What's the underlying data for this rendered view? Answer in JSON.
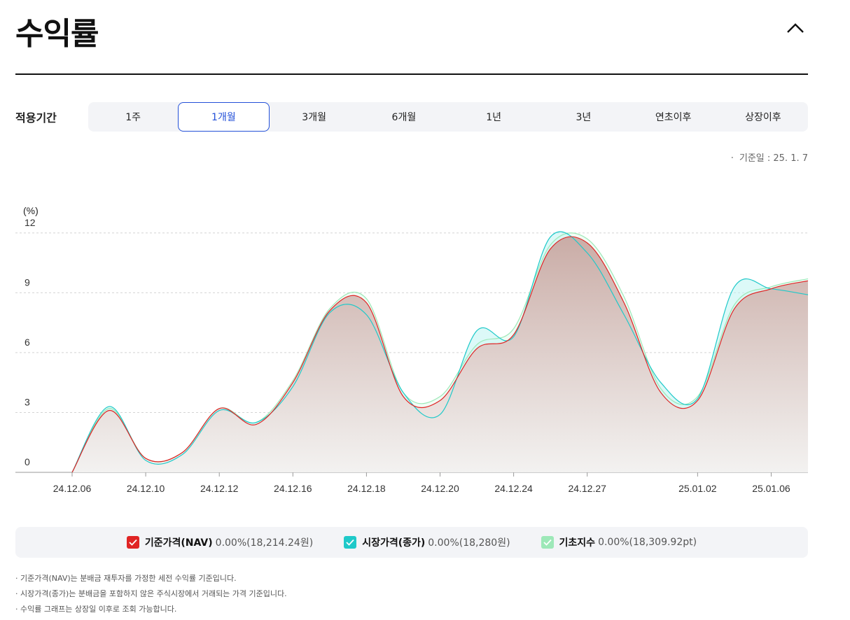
{
  "header": {
    "title": "수익률"
  },
  "period": {
    "label": "적용기간",
    "tabs": [
      "1주",
      "1개월",
      "3개월",
      "6개월",
      "1년",
      "3년",
      "연초이후",
      "상장이후"
    ],
    "active_index": 1
  },
  "base_date": {
    "text": "기준일 : 25. 1. 7"
  },
  "colors": {
    "nav": "#e02424",
    "market": "#1fc9c9",
    "index": "#9de8b8",
    "active_tab": "#2350d8"
  },
  "chart_data": {
    "type": "area",
    "y_unit_label": "(%)",
    "ylim": [
      0,
      12
    ],
    "y_ticks": [
      "0",
      "3",
      "6",
      "9",
      "12"
    ],
    "x_ticks": [
      "24.12.06",
      "24.12.10",
      "24.12.12",
      "24.12.16",
      "24.12.18",
      "24.12.20",
      "24.12.24",
      "24.12.27",
      "25.01.02",
      "25.01.06"
    ],
    "x": [
      "24.12.06",
      "24.12.09",
      "24.12.10",
      "24.12.11",
      "24.12.12",
      "24.12.13",
      "24.12.16",
      "24.12.17",
      "24.12.18",
      "24.12.19",
      "24.12.20",
      "24.12.23",
      "24.12.24",
      "24.12.26",
      "24.12.27",
      "24.12.30",
      "24.12.31",
      "25.01.02",
      "25.01.03",
      "25.01.06",
      "25.01.07"
    ],
    "series": [
      {
        "name": "기준가격(NAV)",
        "values": [
          0.0,
          3.1,
          0.7,
          1.0,
          3.2,
          2.4,
          4.5,
          8.1,
          8.5,
          3.8,
          3.6,
          6.2,
          6.9,
          11.2,
          11.5,
          8.5,
          4.0,
          3.6,
          8.2,
          9.2,
          9.6
        ]
      },
      {
        "name": "시장가격(종가)",
        "values": [
          0.0,
          3.3,
          0.6,
          0.9,
          3.1,
          2.5,
          4.3,
          8.0,
          7.9,
          4.0,
          2.9,
          7.1,
          6.8,
          11.8,
          11.0,
          7.9,
          4.5,
          3.7,
          9.3,
          9.2,
          8.9
        ]
      },
      {
        "name": "기초지수",
        "values": [
          0.0,
          3.2,
          0.7,
          1.0,
          3.2,
          2.5,
          4.6,
          8.2,
          8.7,
          4.0,
          3.8,
          6.4,
          7.2,
          11.4,
          11.7,
          8.8,
          4.2,
          3.8,
          8.4,
          9.3,
          9.7
        ]
      }
    ],
    "legend_position": "bottom",
    "grid": true
  },
  "legend": [
    {
      "name": "기준가격(NAV)",
      "value": "0.00%(18,214.24원)"
    },
    {
      "name": "시장가격(종가)",
      "value": "0.00%(18,280원)"
    },
    {
      "name": "기초지수",
      "value": "0.00%(18,309.92pt)"
    }
  ],
  "notes": [
    "기준가격(NAV)는 분배금 재투자를 가정한 세전 수익률 기준입니다.",
    "시장가격(종가)는 분배금을 포함하지 않은 주식시장에서 거래되는 가격 기준입니다.",
    "수익률 그래프는 상장일 이후로 조회 가능합니다."
  ]
}
